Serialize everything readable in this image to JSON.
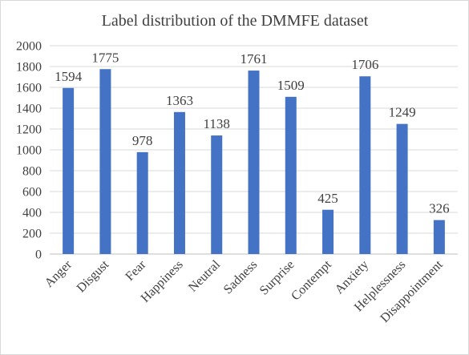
{
  "chart_data": {
    "type": "bar",
    "title": "Label distribution of the DMMFE dataset",
    "xlabel": "",
    "ylabel": "",
    "categories": [
      "Anger",
      "Disgust",
      "Fear",
      "Happiness",
      "Neutral",
      "Sadness",
      "Surprise",
      "Contempt",
      "Anxiety",
      "Helplessness",
      "Disappointment"
    ],
    "values": [
      1594,
      1775,
      978,
      1363,
      1138,
      1761,
      1509,
      425,
      1706,
      1249,
      326
    ],
    "data_labels": [
      "1594",
      "1775",
      "978",
      "1363",
      "1138",
      "1761",
      "1509",
      "425",
      "1706",
      "1249",
      "326"
    ],
    "ylim": [
      0,
      2000
    ],
    "yticks": [
      "0",
      "200",
      "400",
      "600",
      "800",
      "1000",
      "1200",
      "1400",
      "1600",
      "1800",
      "2000"
    ],
    "grid": true,
    "legend": "none",
    "bar_color": "#4472c4"
  }
}
